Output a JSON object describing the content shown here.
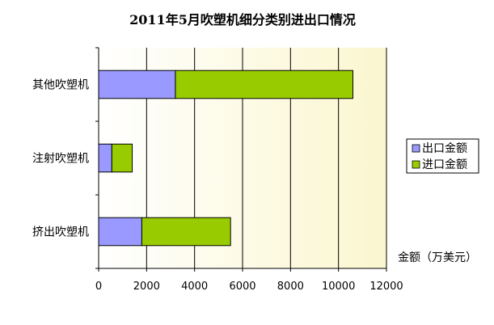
{
  "chart_data": {
    "type": "bar",
    "orientation": "horizontal",
    "stacked": true,
    "title": "2011年5月吹塑机细分类别进出口情况",
    "categories": [
      "其他吹塑机",
      "注射吹塑机",
      "挤出吹塑机"
    ],
    "series": [
      {
        "name": "出口金额",
        "color": "#9999ff",
        "values": [
          3200,
          550,
          1800
        ]
      },
      {
        "name": "进口金额",
        "color": "#99cc00",
        "values": [
          7400,
          850,
          3700
        ]
      }
    ],
    "xlabel": "金额（万美元）",
    "xlim": [
      0,
      12000
    ],
    "xticks": [
      0,
      2000,
      4000,
      6000,
      8000,
      10000,
      12000
    ],
    "grid": true,
    "legend_position": "right",
    "plot_background": "#ffffe5"
  }
}
